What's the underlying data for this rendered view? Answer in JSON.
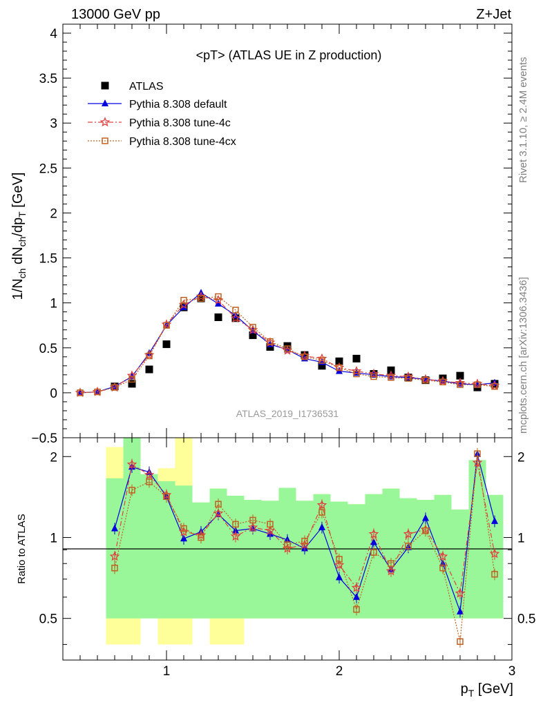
{
  "header": {
    "left": "13000 GeV pp",
    "right": "Z+Jet"
  },
  "side_labels": {
    "top": "Rivet 3.1.10, ≥ 2.4M events",
    "bottom": "mcplots.cern.ch [arXiv:1306.3436]"
  },
  "analysis_id": "ATLAS_2019_I1736531",
  "plot_title": "<pT> (ATLAS UE in Z production)",
  "colors": {
    "atlas": "#000000",
    "default": "#0000dd",
    "tune4c": "#e04040",
    "tune4cx": "#c06020",
    "band_green": "#99f799",
    "band_yellow": "#ffff99"
  },
  "chart_data": [
    {
      "type": "line",
      "ylabel": "1/N_ch dN_ch/dp_T [GeV]",
      "xlim": [
        0.4,
        3.0
      ],
      "ylim": [
        -0.5,
        4.1
      ],
      "yticks": [
        "-0.5",
        "0",
        "0.5",
        "1",
        "1.5",
        "2",
        "2.5",
        "3",
        "3.5",
        "4"
      ],
      "x": [
        0.5,
        0.6,
        0.7,
        0.8,
        0.9,
        1.0,
        1.1,
        1.2,
        1.3,
        1.4,
        1.5,
        1.6,
        1.7,
        1.8,
        1.9,
        2.0,
        2.1,
        2.2,
        2.3,
        2.4,
        2.5,
        2.6,
        2.7,
        2.8,
        2.9
      ],
      "series": [
        {
          "name": "ATLAS",
          "marker": "square",
          "values": [
            null,
            null,
            0.07,
            0.1,
            0.26,
            0.54,
            0.95,
            1.05,
            0.84,
            0.83,
            0.64,
            0.51,
            0.52,
            0.42,
            0.3,
            0.35,
            0.38,
            0.21,
            0.25,
            0.17,
            0.14,
            0.16,
            0.19,
            0.06,
            0.1
          ]
        },
        {
          "name": "Pythia 8.308 default",
          "marker": "triangle",
          "values": [
            0.0,
            0.01,
            0.07,
            0.18,
            0.44,
            0.75,
            0.95,
            1.11,
            0.99,
            0.86,
            0.69,
            0.54,
            0.48,
            0.38,
            0.34,
            0.24,
            0.22,
            0.2,
            0.18,
            0.17,
            0.15,
            0.13,
            0.1,
            0.09,
            0.11
          ]
        },
        {
          "name": "Pythia 8.308 tune-4c",
          "marker": "star",
          "values": [
            0.0,
            0.01,
            0.06,
            0.19,
            0.42,
            0.76,
            0.98,
            1.07,
            1.03,
            0.83,
            0.7,
            0.56,
            0.47,
            0.41,
            0.38,
            0.28,
            0.24,
            0.21,
            0.19,
            0.18,
            0.15,
            0.13,
            0.11,
            0.1,
            0.08
          ]
        },
        {
          "name": "Pythia 8.308 tune-4cx",
          "marker": "open-square",
          "values": [
            0.0,
            0.01,
            0.06,
            0.15,
            0.41,
            0.75,
            1.03,
            1.05,
            1.07,
            0.92,
            0.73,
            0.57,
            0.49,
            0.4,
            0.36,
            0.28,
            0.21,
            0.18,
            0.17,
            0.16,
            0.14,
            0.12,
            0.09,
            0.09,
            0.07
          ]
        }
      ]
    },
    {
      "type": "line",
      "ylabel": "Ratio to ATLAS",
      "xlabel": "p_T [GeV]",
      "xlim": [
        0.4,
        3.0
      ],
      "ylim": [
        0.35,
        2.35
      ],
      "yticks": [
        "0.5",
        "1",
        "2"
      ],
      "xticks": [
        "1",
        "2",
        "3"
      ],
      "x": [
        0.7,
        0.8,
        0.9,
        1.0,
        1.1,
        1.2,
        1.3,
        1.4,
        1.5,
        1.6,
        1.7,
        1.8,
        1.9,
        2.0,
        2.1,
        2.2,
        2.3,
        2.4,
        2.5,
        2.6,
        2.7,
        2.8,
        2.9
      ],
      "bands": {
        "green": [
          [
            0.5,
            1.66
          ],
          [
            0.5,
            2.35
          ],
          [
            0.5,
            1.72
          ],
          [
            0.5,
            1.62
          ],
          [
            0.5,
            1.56
          ],
          [
            0.5,
            1.35
          ],
          [
            0.5,
            1.52
          ],
          [
            0.5,
            1.43
          ],
          [
            0.5,
            1.38
          ],
          [
            0.5,
            1.37
          ],
          [
            0.5,
            1.53
          ],
          [
            0.5,
            1.37
          ],
          [
            0.5,
            1.45
          ],
          [
            0.5,
            1.36
          ],
          [
            0.5,
            1.33
          ],
          [
            0.5,
            1.45
          ],
          [
            0.5,
            1.52
          ],
          [
            0.5,
            1.4
          ],
          [
            0.5,
            1.38
          ],
          [
            0.5,
            1.44
          ],
          [
            0.5,
            1.27
          ],
          [
            0.5,
            1.94
          ],
          [
            0.5,
            1.44
          ]
        ],
        "yellow": [
          [
            0.4,
            2.17
          ],
          [
            0.4,
            2.4
          ],
          [
            0.7,
            1.72
          ],
          [
            0.4,
            1.81
          ],
          [
            0.4,
            2.4
          ],
          [
            0.5,
            1.35
          ],
          [
            0.4,
            1.52
          ],
          [
            0.4,
            1.43
          ],
          [
            0.5,
            1.38
          ],
          [
            0.5,
            1.37
          ],
          [
            0.5,
            1.53
          ],
          [
            0.5,
            1.37
          ],
          [
            0.5,
            1.45
          ],
          [
            0.5,
            1.36
          ],
          [
            0.5,
            1.33
          ],
          [
            0.5,
            1.45
          ],
          [
            0.5,
            1.52
          ],
          [
            0.5,
            1.4
          ],
          [
            0.5,
            1.38
          ],
          [
            0.5,
            1.44
          ],
          [
            0.5,
            1.27
          ],
          [
            0.5,
            1.94
          ],
          [
            0.5,
            1.44
          ]
        ]
      },
      "series": [
        {
          "name": "Pythia 8.308 default",
          "values": [
            1.08,
            1.83,
            1.75,
            1.42,
            0.99,
            1.05,
            1.22,
            1.06,
            1.08,
            1.03,
            0.98,
            0.91,
            1.09,
            0.71,
            0.6,
            0.96,
            0.76,
            0.92,
            1.18,
            0.8,
            0.53,
            2.04,
            1.15
          ]
        },
        {
          "name": "Pythia 8.308 tune-4c",
          "values": [
            0.85,
            1.87,
            1.71,
            1.44,
            1.05,
            1.02,
            1.23,
            1.01,
            1.09,
            1.06,
            0.91,
            0.94,
            1.32,
            0.79,
            0.65,
            1.03,
            0.75,
            1.03,
            1.07,
            0.85,
            0.62,
            1.9,
            0.87
          ]
        },
        {
          "name": "Pythia 8.308 tune-4cx",
          "values": [
            0.77,
            1.5,
            1.61,
            1.42,
            1.08,
            1.0,
            1.33,
            1.12,
            1.16,
            1.12,
            0.94,
            0.97,
            1.24,
            0.83,
            0.54,
            0.88,
            0.8,
            0.93,
            1.06,
            0.77,
            0.41,
            2.05,
            0.73
          ]
        }
      ]
    }
  ]
}
